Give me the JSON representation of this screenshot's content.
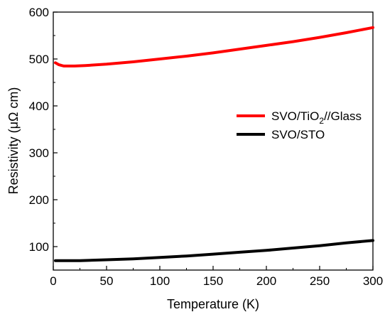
{
  "chart_data": {
    "type": "line",
    "title": "",
    "xlabel": "Temperature (K)",
    "ylabel": "Resistivity (μΩ cm)",
    "xlim": [
      0,
      300
    ],
    "ylim": [
      50,
      600
    ],
    "xticks": [
      0,
      50,
      100,
      150,
      200,
      250,
      300
    ],
    "yticks": [
      100,
      200,
      300,
      400,
      500,
      600
    ],
    "grid": false,
    "legend_position": "middle-right",
    "series": [
      {
        "name": "SVO/TiO2//Glass",
        "legend_main": "SVO/TiO",
        "legend_sub": "2",
        "legend_tail": "//Glass",
        "color": "#ff0000",
        "x": [
          2,
          5,
          8,
          10,
          15,
          20,
          30,
          50,
          75,
          100,
          125,
          150,
          175,
          200,
          225,
          250,
          275,
          300
        ],
        "y": [
          492,
          488,
          486,
          485,
          485,
          485,
          486,
          489,
          494,
          500,
          506,
          513,
          521,
          529,
          537,
          546,
          556,
          567
        ]
      },
      {
        "name": "SVO/STO",
        "legend_main": "SVO/STO",
        "legend_sub": "",
        "legend_tail": "",
        "color": "#000000",
        "x": [
          2,
          10,
          25,
          50,
          75,
          100,
          125,
          150,
          175,
          200,
          225,
          250,
          275,
          300
        ],
        "y": [
          70,
          70,
          70,
          72,
          74,
          77,
          80,
          84,
          88,
          92,
          97,
          102,
          108,
          113
        ]
      }
    ]
  }
}
